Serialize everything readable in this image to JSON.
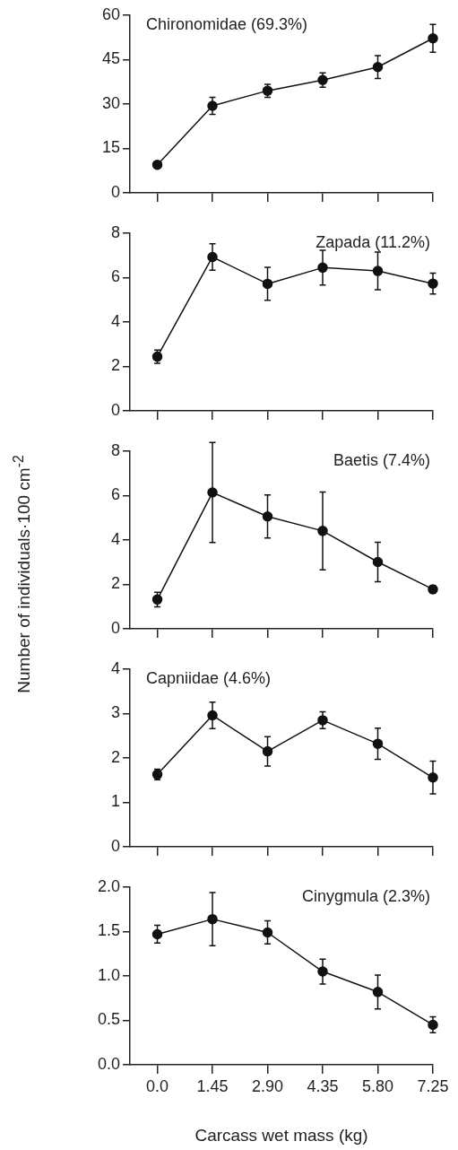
{
  "chart_data": [
    {
      "type": "line",
      "title": "Chironomidae (69.3%)",
      "x": [
        0,
        1.45,
        2.9,
        4.35,
        5.8,
        7.25
      ],
      "values": [
        9.5,
        29.4,
        34.5,
        38.1,
        42.5,
        52.2
      ],
      "errors": [
        null,
        2.9,
        2.2,
        2.4,
        3.9,
        4.7
      ],
      "color": "#111111",
      "marker": "circle",
      "xlim": [
        -0.72,
        7.25
      ],
      "xticks": [
        {
          "value": 0,
          "label": null
        },
        {
          "value": 1.45,
          "label": null
        },
        {
          "value": 2.9,
          "label": null
        },
        {
          "value": 4.35,
          "label": null
        },
        {
          "value": 5.8,
          "label": null
        },
        {
          "value": 7.25,
          "label": null
        }
      ],
      "ylim": [
        0,
        60
      ],
      "yticks": [
        0,
        15,
        30,
        45,
        60
      ],
      "tick_labels": "y"
    },
    {
      "type": "line",
      "title": "Zapada (11.2%)",
      "x": [
        0,
        1.45,
        2.9,
        4.35,
        5.8,
        7.25
      ],
      "values": [
        2.44,
        6.93,
        5.72,
        6.45,
        6.3,
        5.73
      ],
      "errors": [
        0.3,
        0.6,
        0.74,
        0.78,
        0.85,
        0.47
      ],
      "color": "#111111",
      "marker": "circle",
      "xlim": [
        -0.72,
        7.25
      ],
      "xticks": [
        {
          "value": 0,
          "label": null
        },
        {
          "value": 1.45,
          "label": null
        },
        {
          "value": 2.9,
          "label": null
        },
        {
          "value": 4.35,
          "label": null
        },
        {
          "value": 5.8,
          "label": null
        },
        {
          "value": 7.25,
          "label": null
        }
      ],
      "ylim": [
        0,
        8
      ],
      "yticks": [
        0,
        2,
        4,
        6,
        8
      ],
      "tick_labels": "y"
    },
    {
      "type": "line",
      "title": "Baetis (7.4%)",
      "ylabel": "Number of individuals·100 cm$^{-2}$",
      "x": [
        0,
        1.45,
        2.9,
        4.35,
        5.8,
        7.25
      ],
      "values": [
        1.32,
        6.14,
        5.06,
        4.41,
        3.01,
        1.78
      ],
      "errors": [
        0.33,
        2.25,
        0.97,
        1.75,
        0.89,
        0.16
      ],
      "color": "#111111",
      "marker": "circle",
      "xlim": [
        -0.72,
        7.25
      ],
      "xticks": [
        {
          "value": 0,
          "label": null
        },
        {
          "value": 1.45,
          "label": null
        },
        {
          "value": 2.9,
          "label": null
        },
        {
          "value": 4.35,
          "label": null
        },
        {
          "value": 5.8,
          "label": null
        },
        {
          "value": 7.25,
          "label": null
        }
      ],
      "ylim": [
        0,
        8
      ],
      "yticks": [
        0,
        2,
        4,
        6,
        8
      ],
      "tick_labels": "y"
    },
    {
      "type": "line",
      "title": "Capniidae (4.6%)",
      "x": [
        0,
        1.45,
        2.9,
        4.35,
        5.8,
        7.25
      ],
      "values": [
        1.63,
        2.96,
        2.15,
        2.85,
        2.32,
        1.56
      ],
      "errors": [
        0.12,
        0.3,
        0.33,
        0.19,
        0.35,
        0.37
      ],
      "color": "#111111",
      "marker": "circle",
      "xlim": [
        -0.72,
        7.25
      ],
      "xticks": [
        {
          "value": 0,
          "label": null
        },
        {
          "value": 1.45,
          "label": null
        },
        {
          "value": 2.9,
          "label": null
        },
        {
          "value": 4.35,
          "label": null
        },
        {
          "value": 5.8,
          "label": null
        },
        {
          "value": 7.25,
          "label": null
        }
      ],
      "ylim": [
        0,
        4
      ],
      "yticks": [
        0,
        1,
        2,
        3,
        4
      ],
      "tick_labels": "y"
    },
    {
      "type": "line",
      "title": "Cinygmula (2.3%)",
      "xlabel": "Carcass wet mass (kg)",
      "x": [
        0,
        1.45,
        2.9,
        4.35,
        5.8,
        7.25
      ],
      "values": [
        1.47,
        1.64,
        1.49,
        1.05,
        0.82,
        0.45
      ],
      "errors": [
        0.1,
        0.3,
        0.13,
        0.14,
        0.19,
        0.09
      ],
      "color": "#111111",
      "marker": "circle",
      "xlim": [
        -0.72,
        7.25
      ],
      "xticks": [
        {
          "value": 0,
          "label": "0.0"
        },
        {
          "value": 1.45,
          "label": "1.45"
        },
        {
          "value": 2.9,
          "label": "2.90"
        },
        {
          "value": 4.35,
          "label": "4.35"
        },
        {
          "value": 5.8,
          "label": "5.80"
        },
        {
          "value": 7.25,
          "label": "7.25"
        }
      ],
      "ylim": [
        0,
        2
      ],
      "yticks": [
        {
          "value": 0,
          "label": "0.0"
        },
        {
          "value": 0.5,
          "label": "0.5"
        },
        {
          "value": 1,
          "label": "1.0"
        },
        {
          "value": 1.5,
          "label": "1.5"
        },
        {
          "value": 2,
          "label": "2.0"
        }
      ]
    }
  ]
}
